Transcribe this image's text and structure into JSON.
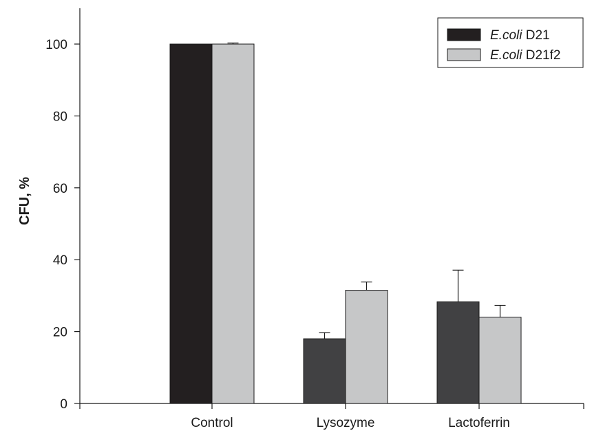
{
  "chart_data": {
    "type": "bar",
    "title": "",
    "xlabel": "",
    "ylabel": "CFU, %",
    "ylim": [
      0,
      110
    ],
    "yticks": [
      0,
      20,
      40,
      60,
      80,
      100
    ],
    "categories": [
      "Control",
      "Lysozyme",
      "Lactoferrin"
    ],
    "grid": false,
    "legend_position": "top-right",
    "series": [
      {
        "name_italic": "E.coli",
        "name_rest": " D21",
        "values": [
          100,
          18,
          28.3
        ],
        "errors": [
          0,
          1.7,
          8.8
        ],
        "colors": [
          "#231f20",
          "#414143",
          "#414143"
        ]
      },
      {
        "name_italic": "E.coli",
        "name_rest": " D21f2",
        "values": [
          100,
          31.5,
          24
        ],
        "errors": [
          0.3,
          2.3,
          3.3
        ],
        "colors": [
          "#c6c7c8",
          "#c6c7c8",
          "#c6c7c8"
        ]
      }
    ]
  }
}
